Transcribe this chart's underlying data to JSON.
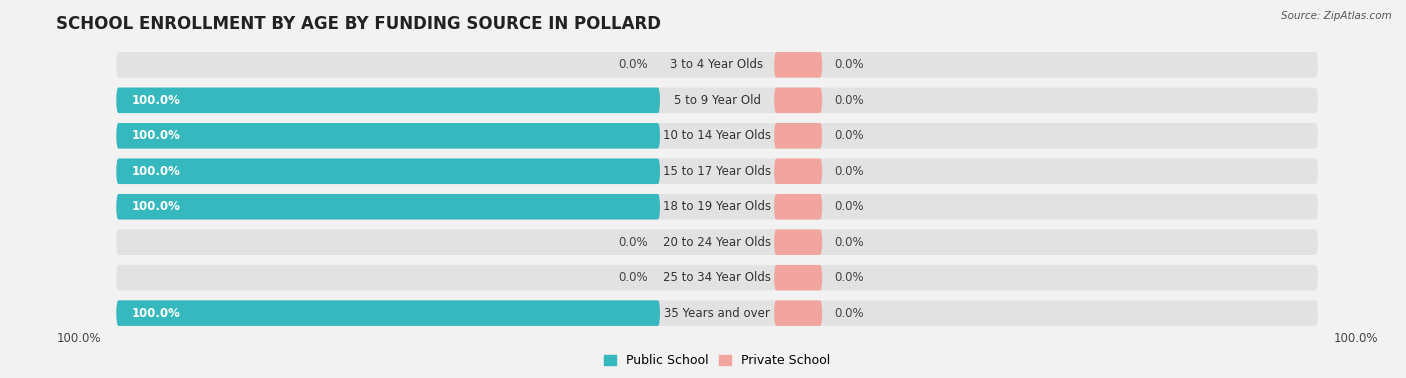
{
  "title": "SCHOOL ENROLLMENT BY AGE BY FUNDING SOURCE IN POLLARD",
  "source": "Source: ZipAtlas.com",
  "categories": [
    "3 to 4 Year Olds",
    "5 to 9 Year Old",
    "10 to 14 Year Olds",
    "15 to 17 Year Olds",
    "18 to 19 Year Olds",
    "20 to 24 Year Olds",
    "25 to 34 Year Olds",
    "35 Years and over"
  ],
  "public_values": [
    0.0,
    100.0,
    100.0,
    100.0,
    100.0,
    0.0,
    0.0,
    100.0
  ],
  "private_values": [
    0.0,
    0.0,
    0.0,
    0.0,
    0.0,
    0.0,
    0.0,
    0.0
  ],
  "public_color": "#35b8be",
  "private_color": "#f2a49e",
  "bg_color": "#f2f2f2",
  "bar_bg_color": "#e2e2e2",
  "title_fontsize": 12,
  "label_fontsize": 8.5,
  "legend_fontsize": 9,
  "stub_pct": 8.0
}
